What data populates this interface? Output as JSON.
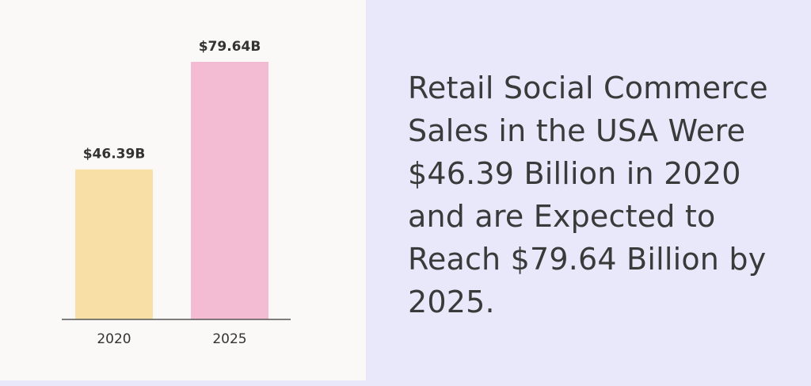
{
  "headline": "Retail Social Commerce Sales in the USA Were $46.39 Billion in 2020 and are Expected to Reach $79.64 Billion by 2025.",
  "chart_data": {
    "type": "bar",
    "categories": [
      "2020",
      "2025"
    ],
    "values": [
      46.39,
      79.64
    ],
    "value_labels": [
      "$46.39B",
      "$79.64B"
    ],
    "colors": [
      "#f8dfa5",
      "#f4bcd3"
    ],
    "ylim": [
      0,
      79.64
    ],
    "grid": false,
    "axis_color": "#555555"
  }
}
